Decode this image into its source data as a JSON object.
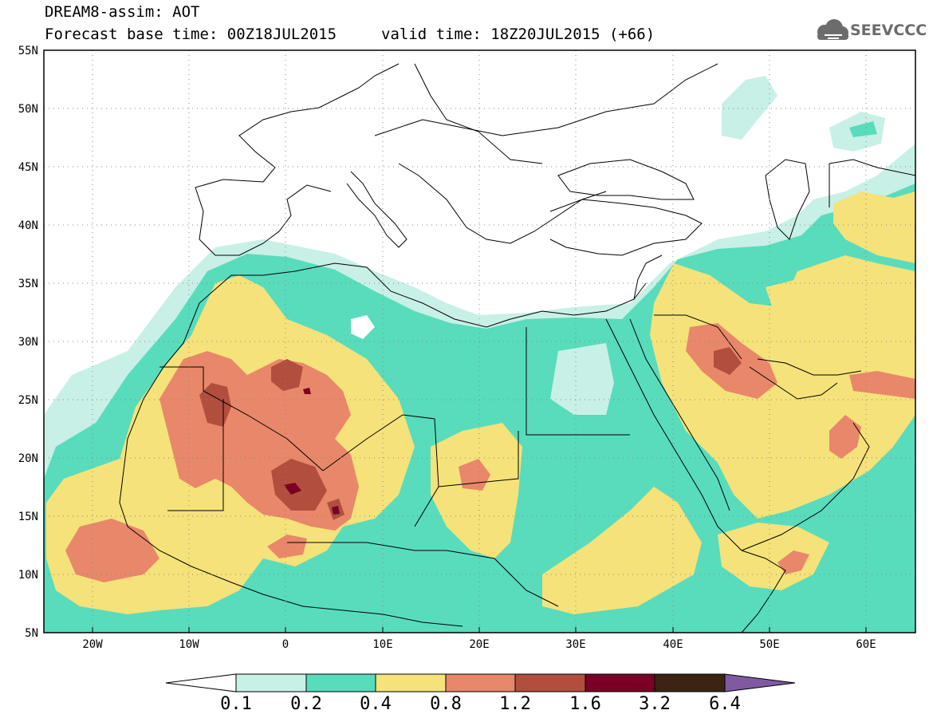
{
  "header": {
    "title_line1": "DREAM8-assim: AOT",
    "title_line2": "Forecast base time: 00Z18JUL2015",
    "valid_text": "valid time: 18Z20JUL2015 (+66)",
    "logo_text": "SEEVCCC",
    "logo_icon": "cloud-icon"
  },
  "map": {
    "lon_ticks": [
      "20W",
      "10W",
      "0",
      "10E",
      "20E",
      "30E",
      "40E",
      "50E",
      "60E"
    ],
    "lat_ticks": [
      "55N",
      "50N",
      "45N",
      "40N",
      "35N",
      "30N",
      "25N",
      "20N",
      "15N",
      "10N",
      "5N"
    ]
  },
  "colorbar": {
    "labels": [
      "0.1",
      "0.2",
      "0.4",
      "0.8",
      "1.2",
      "1.6",
      "3.2",
      "6.4"
    ],
    "colors": [
      "#ffffff",
      "#c8f0e6",
      "#58dcbc",
      "#f5e27a",
      "#e8876a",
      "#b24e3d",
      "#7a0026",
      "#3b2414",
      "#7f5aa0"
    ]
  }
}
